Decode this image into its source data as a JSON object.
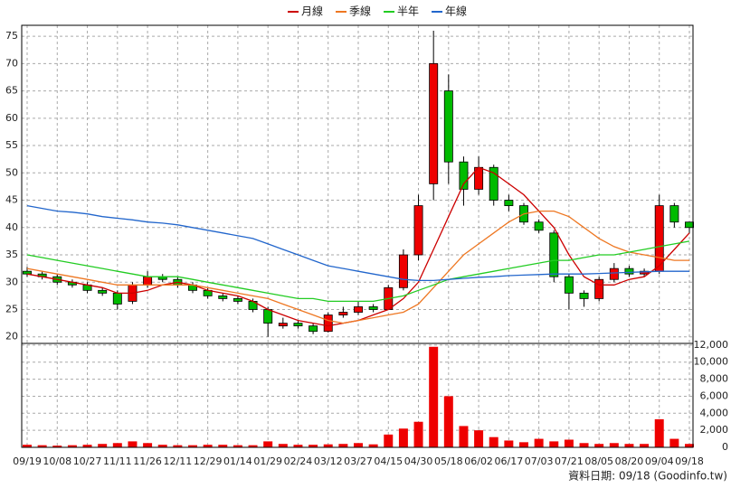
{
  "chart_data": [
    {
      "type": "candlestick",
      "open": [
        32,
        31.5,
        31,
        30,
        29.5,
        28.5,
        28,
        26.5,
        29.5,
        31,
        30.5,
        29.5,
        28.5,
        27.5,
        27,
        26.5,
        25,
        22,
        22.5,
        22,
        21,
        24,
        24.5,
        25.5,
        25,
        29,
        35,
        48,
        65,
        52,
        47,
        51,
        45,
        44,
        41,
        39,
        31,
        28,
        27,
        30.5,
        32.5,
        31.5,
        32,
        44,
        41
      ],
      "high": [
        32.8,
        32,
        31.5,
        30.5,
        30,
        29,
        28.5,
        30,
        32,
        31.5,
        31,
        30,
        29,
        28,
        27.5,
        27,
        25.5,
        23.5,
        23,
        22.5,
        24.5,
        25.5,
        26.5,
        26,
        29.5,
        36,
        46,
        76,
        68,
        53,
        53,
        51.5,
        46,
        44.5,
        41.5,
        39.5,
        31.5,
        28.5,
        31,
        33.5,
        33,
        32.5,
        46,
        44.5,
        41
      ],
      "low": [
        31,
        30.5,
        29.5,
        29,
        28,
        27.5,
        25,
        26,
        29,
        30,
        29,
        28,
        27,
        26.5,
        26,
        24.5,
        20,
        21.5,
        21.5,
        20.5,
        20.8,
        23.5,
        24,
        24.5,
        25,
        28.5,
        34,
        45,
        48,
        44,
        46,
        44,
        43,
        40.5,
        39,
        30,
        25,
        25.5,
        26.5,
        30,
        31,
        31,
        31.5,
        40,
        39
      ],
      "close": [
        31.5,
        31,
        30,
        29.5,
        28.5,
        28,
        26,
        29.5,
        31,
        30.5,
        29.5,
        28.5,
        27.5,
        27,
        26.5,
        25,
        22.5,
        22.5,
        22,
        21,
        24,
        24.5,
        25.5,
        25,
        29,
        35,
        44,
        70,
        52,
        47,
        51,
        45,
        44,
        41,
        39.5,
        31,
        28,
        27,
        30.5,
        32.5,
        31.5,
        32,
        44,
        41,
        40
      ],
      "up_color": "#ee0000",
      "down_color": "#00bb00",
      "series": [
        {
          "name": "月線",
          "color": "#cc0000",
          "values": [
            31.5,
            31,
            30.5,
            30,
            29.5,
            29,
            28,
            28,
            28.5,
            29.5,
            30,
            29.5,
            28.5,
            28,
            27.5,
            26.5,
            25,
            24,
            23,
            22.5,
            22,
            22.5,
            23,
            24,
            25,
            27,
            30,
            36,
            42,
            48,
            51,
            50,
            48,
            46,
            43,
            40,
            35,
            31,
            29.5,
            29.5,
            30.5,
            31,
            33,
            36,
            39
          ]
        },
        {
          "name": "季線",
          "color": "#ee7722",
          "values": [
            32.5,
            32,
            31.5,
            31,
            30.5,
            30,
            29.5,
            29.5,
            29.5,
            29.5,
            29.5,
            29.5,
            29,
            28.5,
            28,
            27.5,
            27,
            26,
            25,
            24,
            23,
            22.5,
            23,
            23.5,
            24,
            24.5,
            26,
            29,
            32,
            35,
            37,
            39,
            41,
            42.5,
            43,
            43,
            42,
            40,
            38,
            36.5,
            35.5,
            35,
            34.5,
            34,
            34
          ]
        },
        {
          "name": "半年",
          "color": "#22cc22",
          "values": [
            35,
            34.5,
            34,
            33.5,
            33,
            32.5,
            32,
            31.5,
            31,
            31,
            31,
            30.5,
            30,
            29.5,
            29,
            28.5,
            28,
            27.5,
            27,
            27,
            26.5,
            26.5,
            26.5,
            26.5,
            27,
            27.5,
            28.5,
            29.5,
            30.5,
            31,
            31.5,
            32,
            32.5,
            33,
            33.5,
            34,
            34,
            34.5,
            35,
            35,
            35.5,
            36,
            36.5,
            37,
            37.5
          ]
        },
        {
          "name": "年線",
          "color": "#2266cc",
          "values": [
            44,
            43.5,
            43,
            42.8,
            42.5,
            42,
            41.7,
            41.4,
            41,
            40.8,
            40.5,
            40,
            39.5,
            39,
            38.5,
            38,
            37,
            36,
            35,
            34,
            33,
            32.5,
            32,
            31.5,
            31,
            30.5,
            30.3,
            30.3,
            30.5,
            30.7,
            30.9,
            31,
            31.2,
            31.3,
            31.4,
            31.5,
            31.5,
            31.5,
            31.6,
            31.7,
            31.8,
            31.9,
            32,
            32,
            32
          ]
        }
      ],
      "ylim": [
        18.8,
        77
      ],
      "yticks": [
        20,
        25,
        30,
        35,
        40,
        45,
        50,
        55,
        60,
        65,
        70,
        75
      ],
      "grid": true
    },
    {
      "type": "bar",
      "categories": [
        "09/19",
        null,
        "10/08",
        null,
        "10/27",
        null,
        "11/11",
        null,
        "11/26",
        null,
        "12/11",
        null,
        "12/29",
        null,
        "01/14",
        null,
        "01/29",
        null,
        "02/24",
        null,
        "03/12",
        null,
        "03/27",
        null,
        "04/15",
        null,
        "04/30",
        null,
        "05/18",
        null,
        "06/02",
        null,
        "06/17",
        null,
        "07/03",
        null,
        "07/21",
        null,
        "08/05",
        null,
        "08/20",
        null,
        "09/04",
        null,
        "09/18"
      ],
      "values": [
        300,
        250,
        200,
        250,
        300,
        400,
        500,
        700,
        500,
        300,
        250,
        250,
        300,
        300,
        250,
        250,
        700,
        400,
        300,
        300,
        350,
        400,
        500,
        350,
        1500,
        2200,
        3000,
        11800,
        6000,
        2500,
        2000,
        1200,
        800,
        600,
        1000,
        700,
        900,
        500,
        400,
        500,
        400,
        400,
        3300,
        1000,
        400
      ],
      "color": "#ee0000",
      "ylim": [
        0,
        12200
      ],
      "yticks": [
        0,
        {
          "value": 2000,
          "label": "2,000"
        },
        {
          "value": 4000,
          "label": "4,000"
        },
        {
          "value": 6000,
          "label": "6,000"
        },
        {
          "value": 8000,
          "label": "8,000"
        },
        {
          "value": 10000,
          "label": "10,000"
        },
        {
          "value": 12000,
          "label": "12,000"
        }
      ],
      "grid": true,
      "footnote": "資料日期: 09/18 (Goodinfo.tw)"
    }
  ]
}
